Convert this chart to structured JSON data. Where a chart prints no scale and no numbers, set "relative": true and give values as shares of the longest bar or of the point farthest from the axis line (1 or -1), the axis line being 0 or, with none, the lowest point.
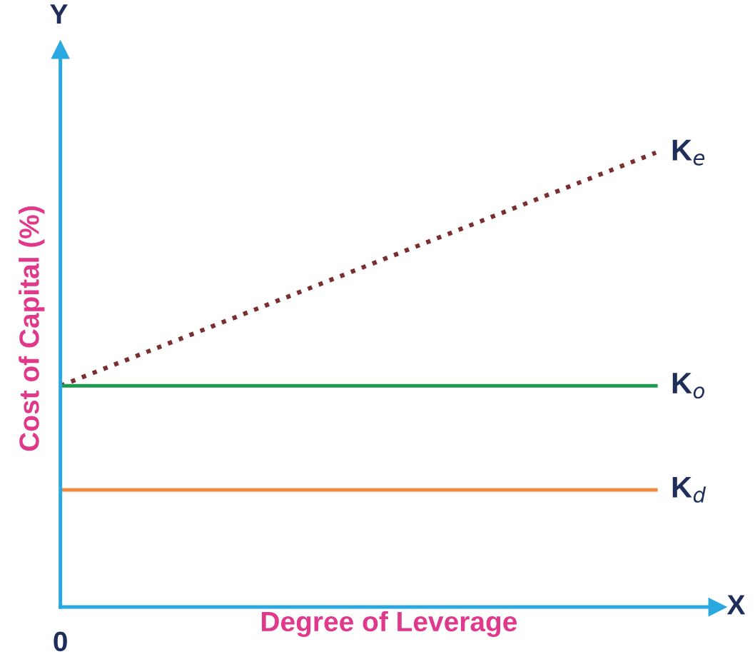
{
  "chart_data": {
    "type": "line",
    "relative": true,
    "xlabel": "Degree of Leverage",
    "ylabel": "Cost of Capital (%)",
    "categories": [
      null,
      null
    ],
    "series": [
      {
        "name": "K$_{e}$",
        "color": "#7b2e2e",
        "values": [
          0.487,
          1
        ],
        "line_style": "dotted"
      },
      {
        "name": "K$_{o}$",
        "color": "#1e9a50",
        "values": [
          0.487,
          0.487
        ],
        "line_style": "solid"
      },
      {
        "name": "K$_{d}$",
        "color": "#f08a3c",
        "values": [
          0.258,
          0.258
        ],
        "line_style": "solid"
      }
    ],
    "annotations": [
      "Y",
      "X",
      "0"
    ],
    "legend": false,
    "marker": "none"
  }
}
